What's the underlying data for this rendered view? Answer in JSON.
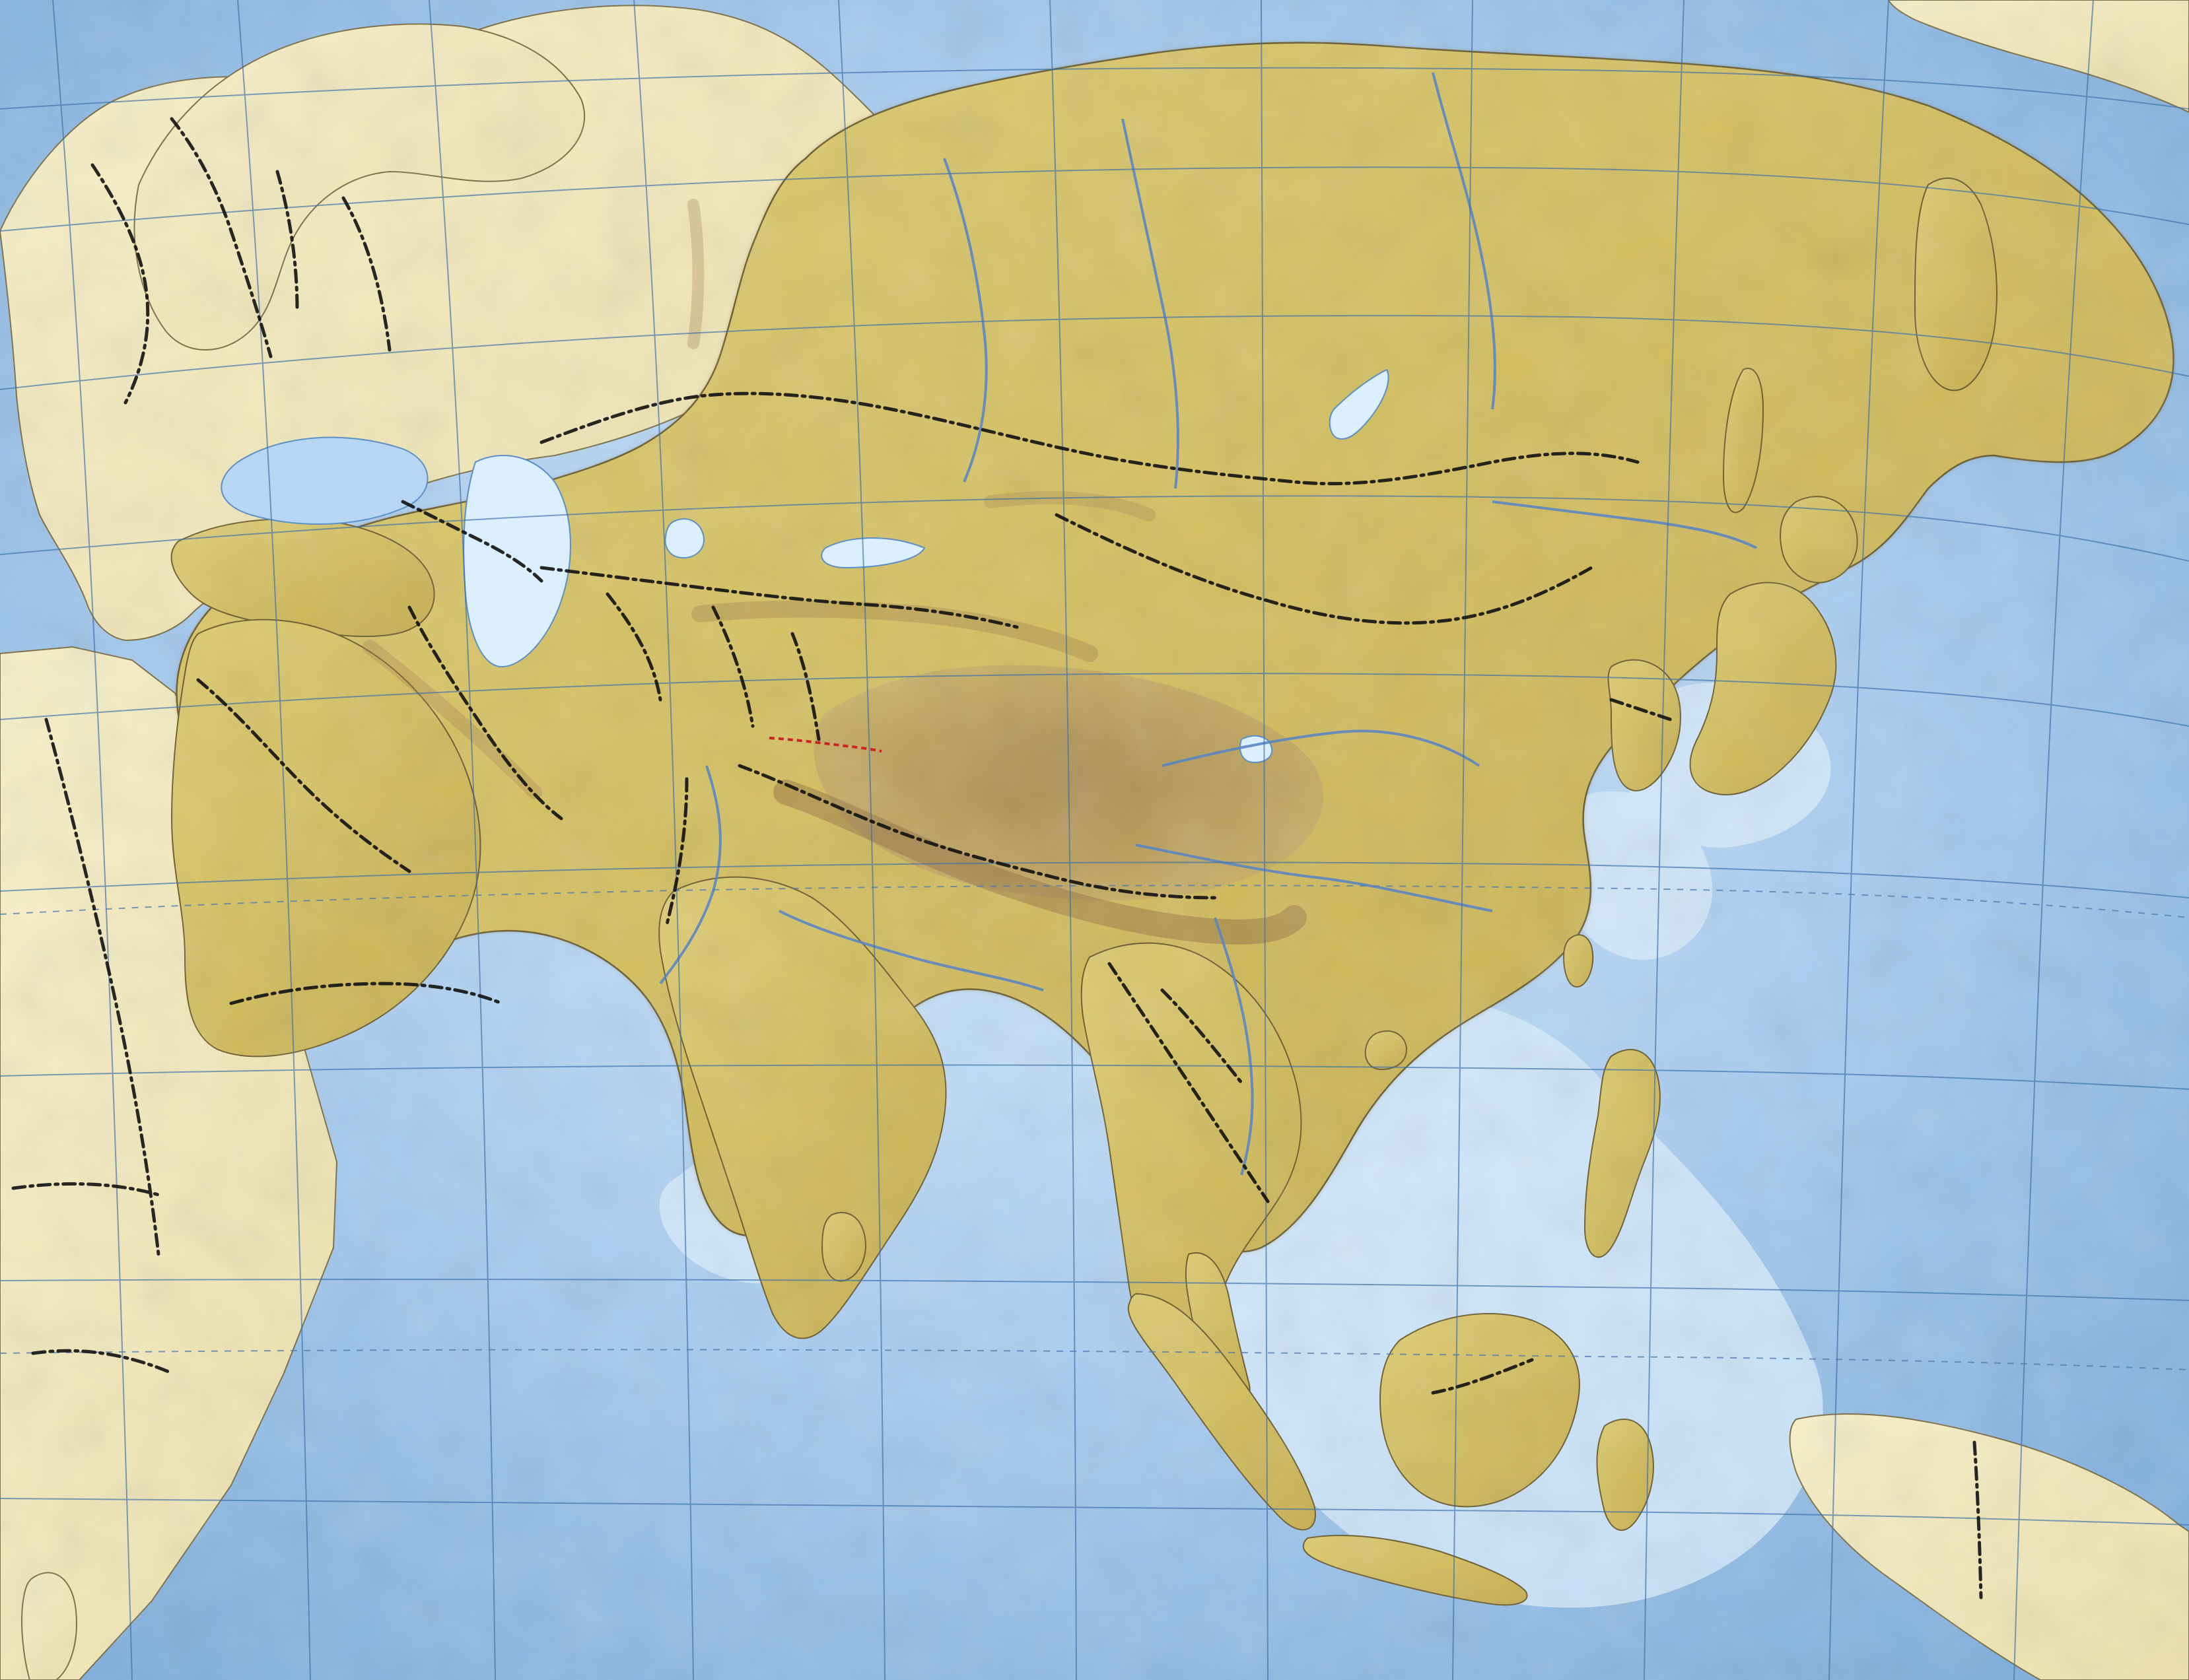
{
  "map": {
    "colors": {
      "ocean_deep": "#7fb0de",
      "ocean_shallow": "#c9e2f5",
      "land_outer": "#f2e9b8",
      "land_asia": "#d8c66a",
      "highland": "#b79a53",
      "plateau": "#8f7040",
      "graticule": "#3c6fa8",
      "borders": "#111111",
      "rivers": "#5b86c2",
      "lakes": "#dcefff"
    }
  }
}
